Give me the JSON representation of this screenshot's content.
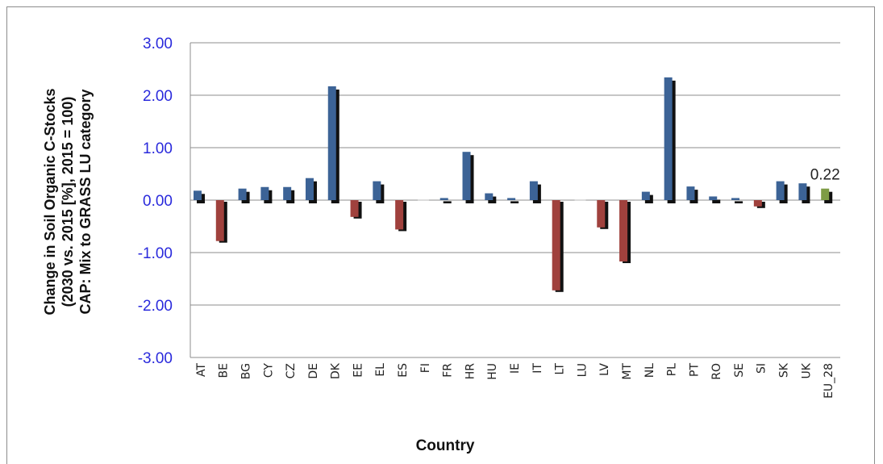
{
  "chart_data": {
    "type": "bar",
    "xlabel": "Country",
    "ylabel_lines": [
      "Change in Soil Organic C-Stocks",
      "(2030 vs. 2015 [%], 2015 = 100)",
      "CAP: Mix to GRASS LU category"
    ],
    "ylim": [
      -3,
      3
    ],
    "yticks": [
      "3.00",
      "2.00",
      "1.00",
      "0.00",
      "-1.00",
      "-2.00",
      "-3.00"
    ],
    "grid": true,
    "categories": [
      "AT",
      "BE",
      "BG",
      "CY",
      "CZ",
      "DE",
      "DK",
      "EE",
      "EL",
      "ES",
      "FI",
      "FR",
      "HR",
      "HU",
      "IE",
      "IT",
      "LT",
      "LU",
      "LV",
      "MT",
      "NL",
      "PL",
      "PT",
      "RO",
      "SE",
      "SI",
      "SK",
      "UK",
      "EU_28"
    ],
    "values": [
      0.18,
      -0.78,
      0.22,
      0.25,
      0.25,
      0.42,
      2.17,
      -0.32,
      0.36,
      -0.56,
      0.0,
      0.04,
      0.92,
      0.13,
      0.04,
      0.36,
      -1.72,
      0.0,
      -0.52,
      -1.17,
      0.16,
      2.34,
      0.26,
      0.07,
      0.04,
      -0.12,
      0.36,
      0.32,
      0.22
    ],
    "data_labels": [
      {
        "category": "EU_28",
        "text": "0.22"
      }
    ],
    "colors": {
      "positive": "#3c6396",
      "negative": "#a0413d",
      "aggregate": "#7e9c46",
      "grid": "#8c8c8c",
      "tick_text": "#2a2adc"
    }
  }
}
